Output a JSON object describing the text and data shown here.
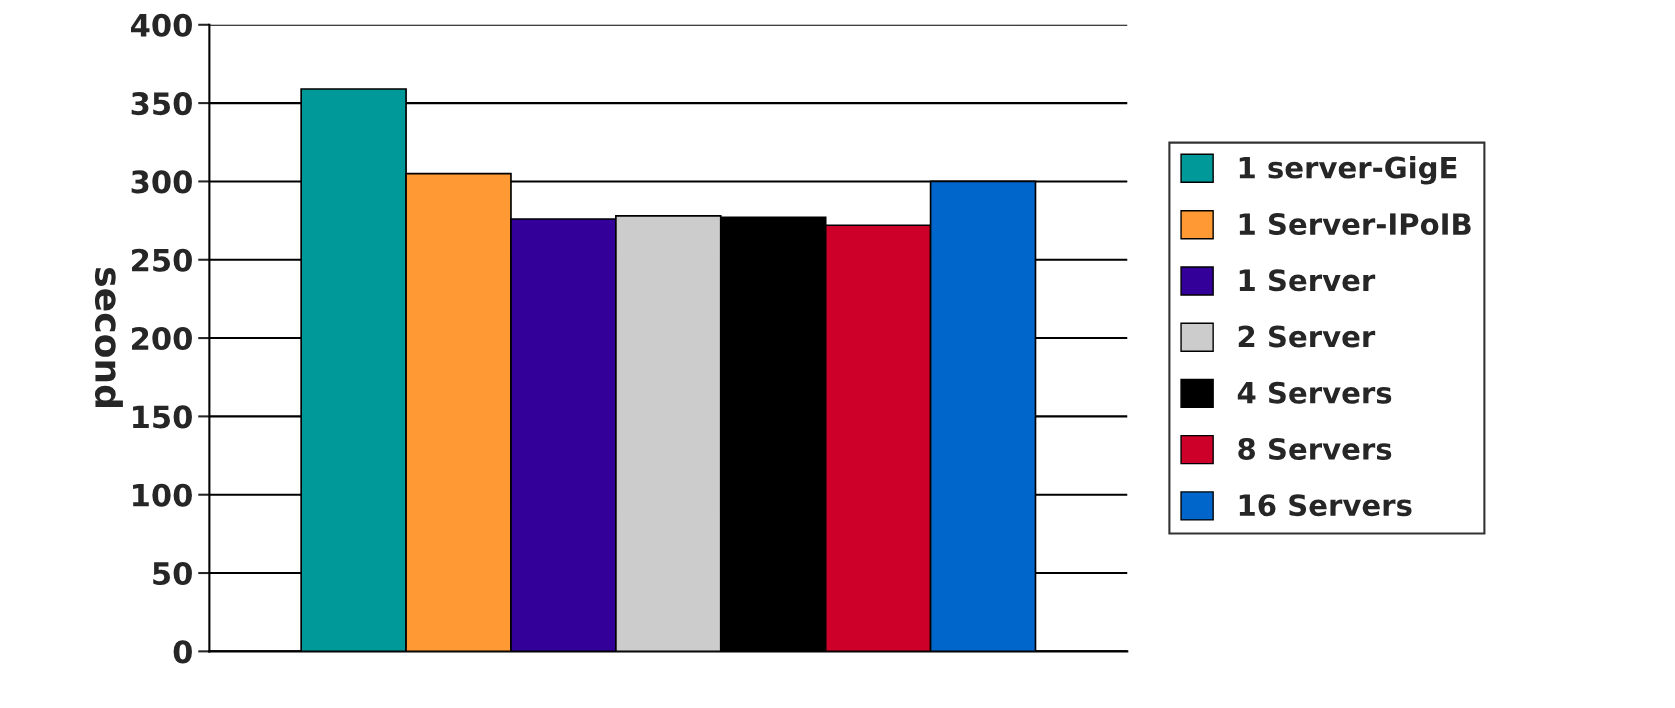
{
  "chart_data": {
    "type": "bar",
    "ylabel": "second",
    "categories": [
      null
    ],
    "series": [
      {
        "name": "1 server-GigE",
        "color": "#009999",
        "values": [
          359
        ]
      },
      {
        "name": "1 Server-IPoIB",
        "color": "#ff9933",
        "values": [
          305
        ]
      },
      {
        "name": "1 Server",
        "color": "#330099",
        "values": [
          276
        ]
      },
      {
        "name": "2 Server",
        "color": "#cccccc",
        "values": [
          278
        ]
      },
      {
        "name": "4 Servers",
        "color": "#000000",
        "values": [
          277
        ]
      },
      {
        "name": "8 Servers",
        "color": "#cc0029",
        "values": [
          272
        ]
      },
      {
        "name": "16 Servers",
        "color": "#0066cc",
        "values": [
          300
        ]
      }
    ],
    "ylim": [
      0,
      400
    ],
    "yticks": [
      0,
      50,
      100,
      150,
      200,
      250,
      300,
      350,
      400
    ],
    "grid": "y",
    "legend": "right"
  }
}
